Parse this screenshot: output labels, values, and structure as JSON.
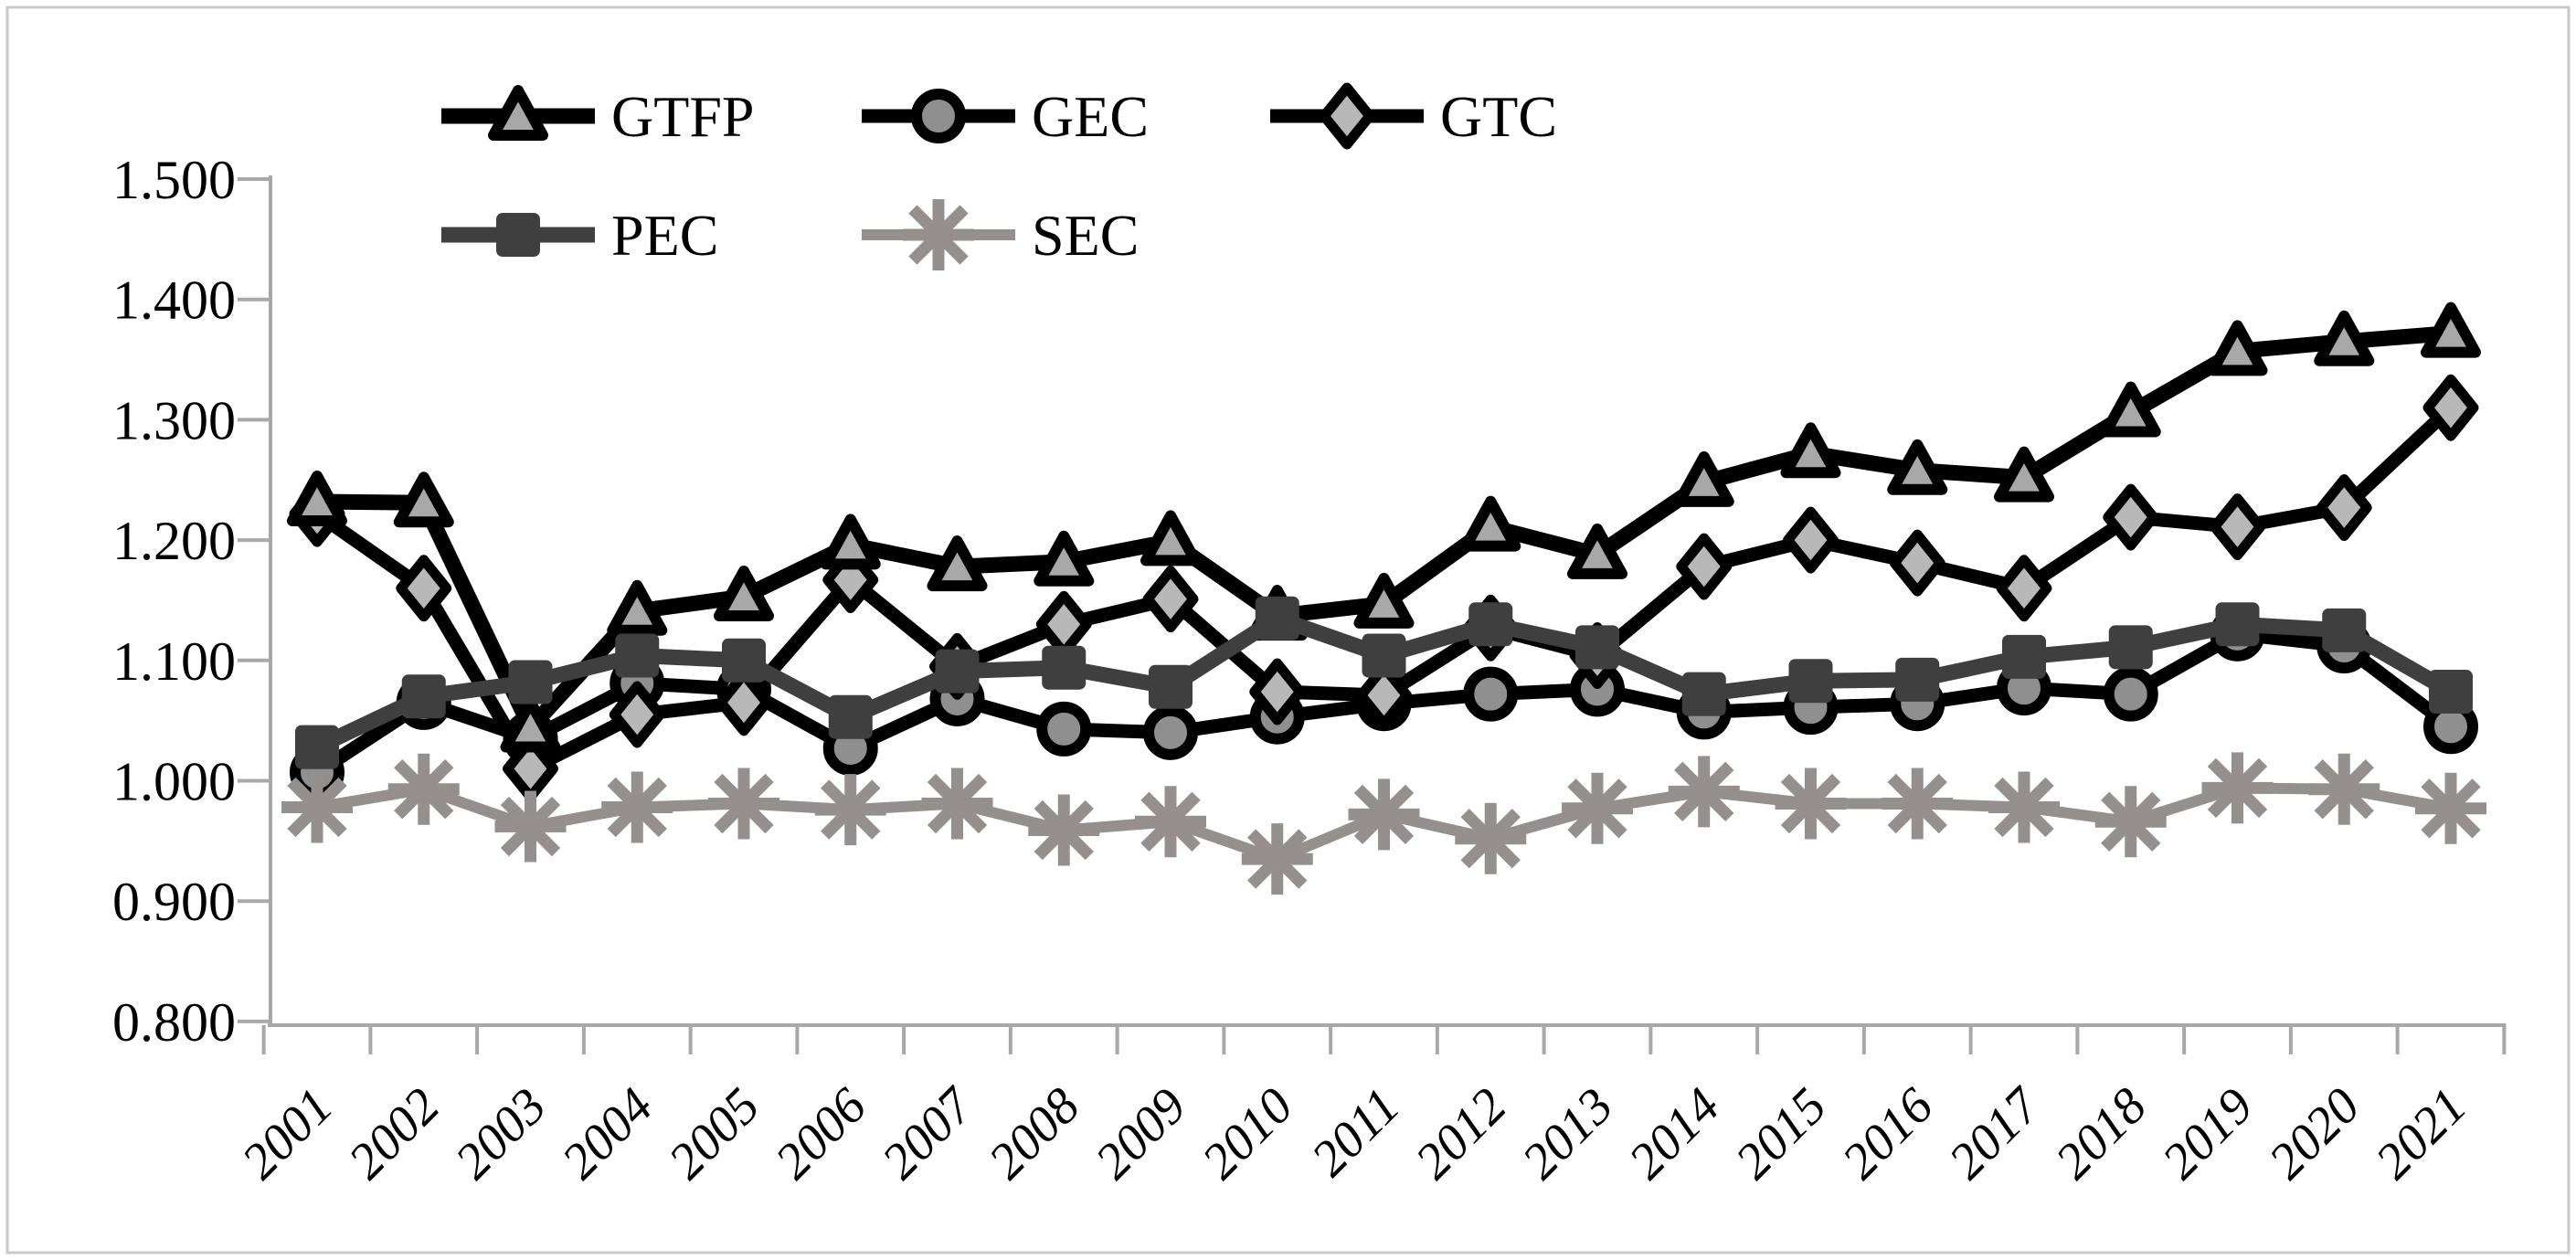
{
  "chart_data": {
    "type": "line",
    "categories": [
      "2001",
      "2002",
      "2003",
      "2004",
      "2005",
      "2006",
      "2007",
      "2008",
      "2009",
      "2010",
      "2011",
      "2012",
      "2013",
      "2014",
      "2015",
      "2016",
      "2017",
      "2018",
      "2019",
      "2020",
      "2021"
    ],
    "series": [
      {
        "name": "GTFP",
        "marker": "triangle",
        "line_color": "#000000",
        "marker_fill": "#a8a8a8",
        "marker_stroke": "#000000",
        "values": [
          1.232,
          1.231,
          1.044,
          1.141,
          1.153,
          1.196,
          1.178,
          1.182,
          1.199,
          1.137,
          1.147,
          1.211,
          1.188,
          1.248,
          1.272,
          1.258,
          1.252,
          1.306,
          1.357,
          1.365,
          1.372
        ]
      },
      {
        "name": "GEC",
        "marker": "circle",
        "line_color": "#000000",
        "marker_fill": "#8f8f8f",
        "marker_stroke": "#000000",
        "values": [
          1.007,
          1.065,
          1.035,
          1.081,
          1.076,
          1.027,
          1.068,
          1.043,
          1.04,
          1.053,
          1.064,
          1.072,
          1.076,
          1.057,
          1.061,
          1.064,
          1.077,
          1.072,
          1.122,
          1.112,
          1.045
        ]
      },
      {
        "name": "GTC",
        "marker": "diamond",
        "line_color": "#000000",
        "marker_fill": "#b8b8b8",
        "marker_stroke": "#000000",
        "values": [
          1.222,
          1.16,
          1.01,
          1.055,
          1.065,
          1.167,
          1.095,
          1.13,
          1.151,
          1.074,
          1.071,
          1.127,
          1.104,
          1.178,
          1.2,
          1.181,
          1.16,
          1.219,
          1.211,
          1.227,
          1.31
        ]
      },
      {
        "name": "PEC",
        "marker": "square",
        "line_color": "#3f3f3f",
        "marker_fill": "#3f3f3f",
        "marker_stroke": "#3f3f3f",
        "values": [
          1.028,
          1.07,
          1.082,
          1.104,
          1.1,
          1.053,
          1.091,
          1.094,
          1.078,
          1.135,
          1.104,
          1.13,
          1.111,
          1.072,
          1.083,
          1.084,
          1.103,
          1.111,
          1.13,
          1.125,
          1.074
        ]
      },
      {
        "name": "SEC",
        "marker": "asterisk",
        "line_color": "#95908e",
        "marker_fill": "#95908e",
        "marker_stroke": "#95908e",
        "values": [
          0.978,
          0.993,
          0.962,
          0.978,
          0.981,
          0.976,
          0.981,
          0.959,
          0.966,
          0.935,
          0.972,
          0.952,
          0.977,
          0.991,
          0.981,
          0.981,
          0.978,
          0.966,
          0.994,
          0.993,
          0.977
        ]
      }
    ],
    "xlabel": "",
    "ylabel": "",
    "ylim": [
      0.8,
      1.5
    ],
    "y_tick_labels": [
      "1.500",
      "1.400",
      "1.300",
      "1.200",
      "1.100",
      "1.000",
      "0.900",
      "0.800"
    ],
    "grid": false,
    "legend_position": "top",
    "legend_rows": [
      [
        "GTFP",
        "GEC",
        "GTC"
      ],
      [
        "PEC",
        "SEC"
      ]
    ]
  },
  "colors": {
    "axis": "#a8a8a8",
    "background": "#ffffff",
    "frame_border": "#c9c9c9",
    "text": "#000000"
  }
}
